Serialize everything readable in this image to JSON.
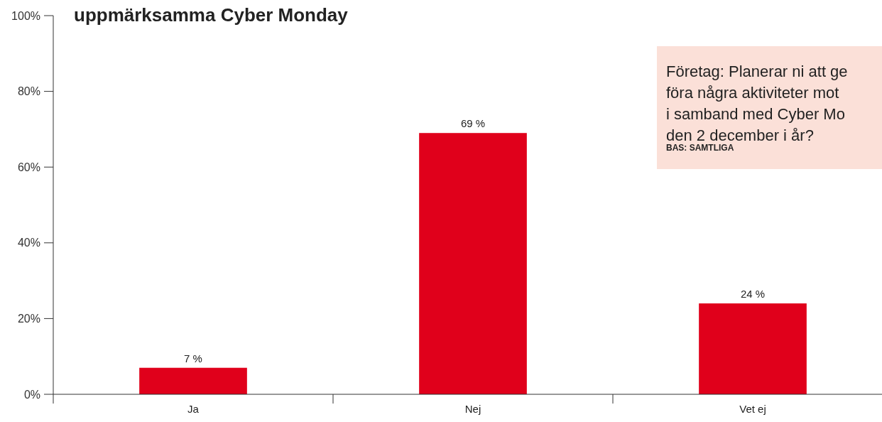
{
  "chart_data": {
    "type": "bar",
    "title": "uppmärksamma Cyber Monday",
    "categories": [
      "Ja",
      "Nej",
      "Vet ej"
    ],
    "values": [
      7,
      69,
      24
    ],
    "value_labels": [
      "7 %",
      "69 %",
      "24 %"
    ],
    "color": "#e0001b",
    "ylim": [
      0,
      100
    ],
    "yticks": [
      {
        "value": 0,
        "label": "0%"
      },
      {
        "value": 20,
        "label": "20%"
      },
      {
        "value": 40,
        "label": "40%"
      },
      {
        "value": 60,
        "label": "60%"
      },
      {
        "value": 80,
        "label": "80%"
      },
      {
        "value": 100,
        "label": "100%"
      }
    ],
    "grid": false,
    "annotations": [
      "Företag: Planerar ni att ge",
      "föra några aktiviteter mot",
      "i samband med Cyber Mo",
      "den 2 december i år?",
      "BAS: SAMTLIGA"
    ]
  }
}
